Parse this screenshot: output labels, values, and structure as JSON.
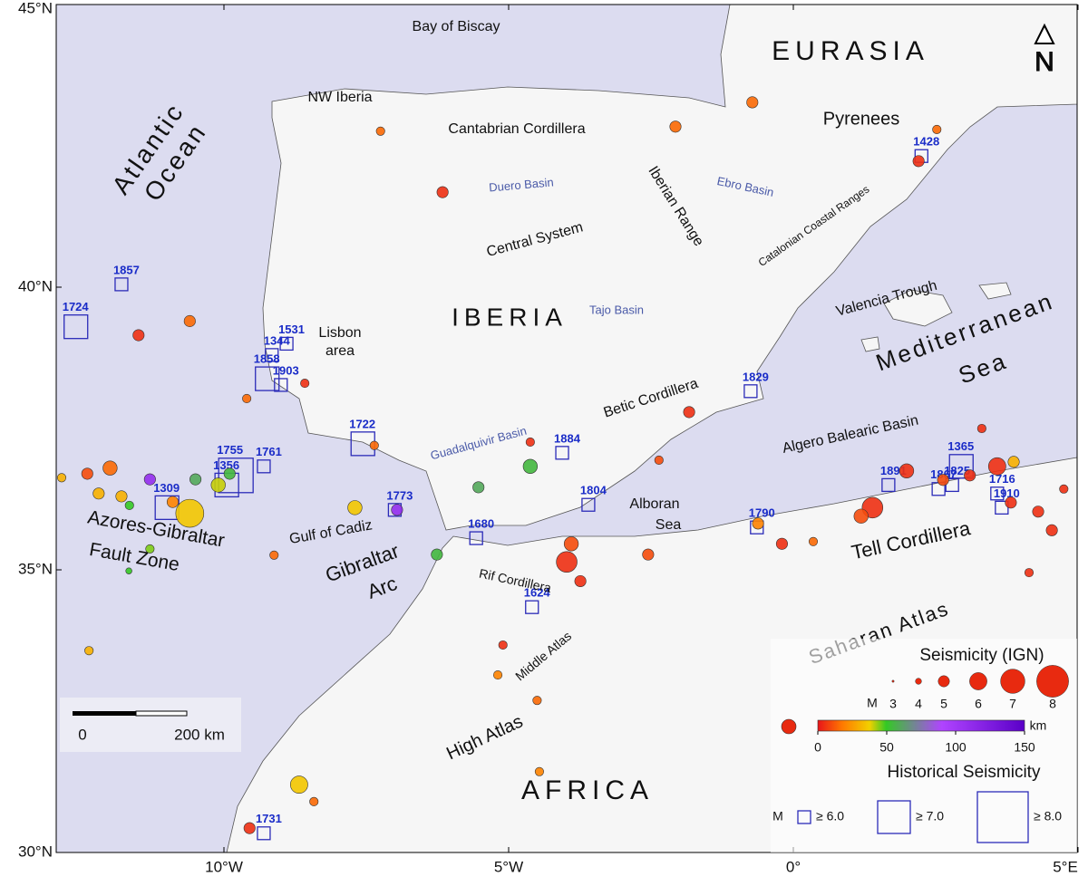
{
  "map": {
    "lat_ticks": [
      {
        "value": 45,
        "label": "45°N"
      },
      {
        "value": 40,
        "label": "40°N"
      },
      {
        "value": 35,
        "label": "35°N"
      },
      {
        "value": 30,
        "label": "30°N"
      }
    ],
    "lon_ticks": [
      {
        "value": -10,
        "label": "10°W"
      },
      {
        "value": -5,
        "label": "5°W"
      },
      {
        "value": 0,
        "label": "0°"
      },
      {
        "value": 5,
        "label": "5°E"
      }
    ],
    "labels": [
      "Bay of Biscay",
      "EURASIA",
      "NW Iberia",
      "Cantabrian Cordillera",
      "Pyrenees",
      "Duero Basin",
      "Ebro Basin",
      "Iberian Range",
      "Catalonian Coastal Ranges",
      "Central System",
      "Atlantic",
      "Ocean",
      "Lisbon",
      "area",
      "IBERIA",
      "Tajo Basin",
      "Valencia Trough",
      "Mediterranean",
      "Sea",
      "Betic Cordillera",
      "Guadalquivir Basin",
      "Algero Balearic Basin",
      "Alboran",
      "Sea",
      "Azores-Gibraltar",
      "Fault Zone",
      "Gulf of Cadiz",
      "Gibraltar",
      "Arc",
      "Rif Cordillera",
      "Tell Cordillera",
      "Saharan Atlas",
      "Middle Atlas",
      "High Atlas",
      "AFRICA"
    ],
    "north": "N",
    "scale_bar": {
      "start": "0",
      "end": "200 km"
    },
    "seismicity": {
      "title": "Seismicity (IGN)",
      "magnitude_label": "M",
      "magnitudes": [
        3,
        4,
        5,
        6,
        7,
        8
      ],
      "depth_ticks": [
        0,
        50,
        100,
        150
      ],
      "depth_unit": "km",
      "events": [
        {
          "lon": -12.4,
          "lat": 36.7,
          "mag": 5,
          "depth": 10
        },
        {
          "lon": -12.0,
          "lat": 36.8,
          "mag": 5.5,
          "depth": 15
        },
        {
          "lon": -11.8,
          "lat": 36.3,
          "mag": 5,
          "depth": 30
        },
        {
          "lon": -11.3,
          "lat": 36.6,
          "mag": 5,
          "depth": 110
        },
        {
          "lon": -10.9,
          "lat": 36.2,
          "mag": 5,
          "depth": 20
        },
        {
          "lon": -10.6,
          "lat": 36.0,
          "mag": 7.5,
          "depth": 35
        },
        {
          "lon": -10.5,
          "lat": 36.6,
          "mag": 5,
          "depth": 60
        },
        {
          "lon": -10.1,
          "lat": 36.5,
          "mag": 5.5,
          "depth": 40
        },
        {
          "lon": -9.9,
          "lat": 36.7,
          "mag": 5,
          "depth": 55
        },
        {
          "lon": -7.7,
          "lat": 36.1,
          "mag": 5.5,
          "depth": 35
        },
        {
          "lon": -6.96,
          "lat": 36.06,
          "mag": 5,
          "depth": 110
        },
        {
          "lon": -10.6,
          "lat": 39.4,
          "mag": 5,
          "depth": 15
        },
        {
          "lon": -11.5,
          "lat": 39.15,
          "mag": 5,
          "depth": 5
        },
        {
          "lon": -9.6,
          "lat": 38.03,
          "mag": 4.5,
          "depth": 15
        },
        {
          "lon": -8.58,
          "lat": 38.3,
          "mag": 4.5,
          "depth": 5
        },
        {
          "lon": -7.36,
          "lat": 37.2,
          "mag": 4.5,
          "depth": 15
        },
        {
          "lon": -4.62,
          "lat": 37.26,
          "mag": 4.5,
          "depth": 5
        },
        {
          "lon": -4.62,
          "lat": 36.83,
          "mag": 5.5,
          "depth": 55
        },
        {
          "lon": -5.53,
          "lat": 36.46,
          "mag": 5,
          "depth": 60
        },
        {
          "lon": -6.26,
          "lat": 35.27,
          "mag": 5,
          "depth": 55
        },
        {
          "lon": -3.9,
          "lat": 35.46,
          "mag": 5.5,
          "depth": 10
        },
        {
          "lon": -3.98,
          "lat": 35.14,
          "mag": 6.5,
          "depth": 5
        },
        {
          "lon": -3.74,
          "lat": 34.8,
          "mag": 5,
          "depth": 5
        },
        {
          "lon": -2.55,
          "lat": 35.27,
          "mag": 5,
          "depth": 10
        },
        {
          "lon": -1.83,
          "lat": 37.79,
          "mag": 5,
          "depth": 5
        },
        {
          "lon": -2.36,
          "lat": 36.94,
          "mag": 4.5,
          "depth": 10
        },
        {
          "lon": -5.1,
          "lat": 33.67,
          "mag": 4.5,
          "depth": 5
        },
        {
          "lon": -5.19,
          "lat": 33.14,
          "mag": 4.5,
          "depth": 20
        },
        {
          "lon": -4.5,
          "lat": 32.69,
          "mag": 4.5,
          "depth": 15
        },
        {
          "lon": -4.46,
          "lat": 31.43,
          "mag": 4.5,
          "depth": 20
        },
        {
          "lon": -8.68,
          "lat": 31.2,
          "mag": 6,
          "depth": 35
        },
        {
          "lon": -8.42,
          "lat": 30.9,
          "mag": 4.5,
          "depth": 15
        },
        {
          "lon": -9.55,
          "lat": 30.43,
          "mag": 5,
          "depth": 5
        },
        {
          "lon": 3.31,
          "lat": 37.5,
          "mag": 4.5,
          "depth": 5
        },
        {
          "lon": 1.39,
          "lat": 36.1,
          "mag": 6.5,
          "depth": 5
        },
        {
          "lon": 1.19,
          "lat": 35.95,
          "mag": 5.5,
          "depth": 10
        },
        {
          "lon": 1.99,
          "lat": 36.75,
          "mag": 5.5,
          "depth": 5
        },
        {
          "lon": 3.58,
          "lat": 36.83,
          "mag": 6,
          "depth": 5
        },
        {
          "lon": 3.87,
          "lat": 36.91,
          "mag": 5,
          "depth": 30
        },
        {
          "lon": 3.1,
          "lat": 36.67,
          "mag": 5,
          "depth": 5
        },
        {
          "lon": 2.63,
          "lat": 36.59,
          "mag": 5,
          "depth": 10
        },
        {
          "lon": 4.3,
          "lat": 36.03,
          "mag": 5,
          "depth": 5
        },
        {
          "lon": 4.54,
          "lat": 35.7,
          "mag": 5,
          "depth": 5
        },
        {
          "lon": 4.14,
          "lat": 34.95,
          "mag": 4.5,
          "depth": 5
        },
        {
          "lon": 3.82,
          "lat": 36.19,
          "mag": 5,
          "depth": 5
        },
        {
          "lon": 4.75,
          "lat": 36.43,
          "mag": 4.5,
          "depth": 5
        },
        {
          "lon": -0.2,
          "lat": 35.46,
          "mag": 5,
          "depth": 5
        },
        {
          "lon": -0.62,
          "lat": 35.82,
          "mag": 5,
          "depth": 20
        },
        {
          "lon": 0.35,
          "lat": 35.5,
          "mag": 4.5,
          "depth": 15
        },
        {
          "lon": -0.72,
          "lat": 43.27,
          "mag": 5,
          "depth": 15
        },
        {
          "lon": -2.07,
          "lat": 42.84,
          "mag": 5,
          "depth": 15
        },
        {
          "lon": 2.52,
          "lat": 42.79,
          "mag": 4.5,
          "depth": 15
        },
        {
          "lon": 2.2,
          "lat": 42.23,
          "mag": 5,
          "depth": 5
        },
        {
          "lon": -7.25,
          "lat": 42.76,
          "mag": 4.5,
          "depth": 15
        },
        {
          "lon": -6.16,
          "lat": 41.68,
          "mag": 5,
          "depth": 5
        },
        {
          "lon": -12.85,
          "lat": 36.63,
          "mag": 4.5,
          "depth": 30
        },
        {
          "lon": -12.2,
          "lat": 36.35,
          "mag": 5,
          "depth": 30
        },
        {
          "lon": -11.66,
          "lat": 36.14,
          "mag": 4.5,
          "depth": 50
        },
        {
          "lon": -11.3,
          "lat": 35.37,
          "mag": 4.5,
          "depth": 45
        },
        {
          "lon": -11.67,
          "lat": 34.98,
          "mag": 4,
          "depth": 50
        },
        {
          "lon": -12.37,
          "lat": 33.57,
          "mag": 4.5,
          "depth": 30
        },
        {
          "lon": -9.12,
          "lat": 35.26,
          "mag": 4.5,
          "depth": 15
        }
      ]
    },
    "historical": {
      "title": "Historical Seismicity",
      "magnitude_label": "M",
      "classes": [
        {
          "value": 6,
          "label": "≥ 6.0"
        },
        {
          "value": 7,
          "label": "≥ 7.0"
        },
        {
          "value": 8,
          "label": "≥ 8.0"
        }
      ],
      "events": [
        {
          "year": 1857,
          "lon": -11.8,
          "lat": 40.05,
          "m": 6
        },
        {
          "year": 1724,
          "lon": -12.6,
          "lat": 39.3,
          "m": 7
        },
        {
          "year": 1531,
          "lon": -8.9,
          "lat": 39.0,
          "m": 6
        },
        {
          "year": 1344,
          "lon": -9.16,
          "lat": 38.8,
          "m": 6
        },
        {
          "year": 1903,
          "lon": -9.0,
          "lat": 38.27,
          "m": 6
        },
        {
          "year": 1858,
          "lon": -9.24,
          "lat": 38.38,
          "m": 7
        },
        {
          "year": 1722,
          "lon": -7.56,
          "lat": 37.23,
          "m": 7
        },
        {
          "year": 1755,
          "lon": -9.79,
          "lat": 36.67,
          "m": 8
        },
        {
          "year": 1761,
          "lon": -9.3,
          "lat": 36.83,
          "m": 6
        },
        {
          "year": 1309,
          "lon": -11.0,
          "lat": 36.1,
          "m": 7
        },
        {
          "year": 1356,
          "lon": -9.95,
          "lat": 36.5,
          "m": 7
        },
        {
          "year": 1773,
          "lon": -7.0,
          "lat": 36.06,
          "m": 6
        },
        {
          "year": 1680,
          "lon": -5.57,
          "lat": 35.56,
          "m": 6
        },
        {
          "year": 1884,
          "lon": -4.06,
          "lat": 37.07,
          "m": 6
        },
        {
          "year": 1804,
          "lon": -3.6,
          "lat": 36.15,
          "m": 6
        },
        {
          "year": 1624,
          "lon": -4.59,
          "lat": 34.34,
          "m": 6
        },
        {
          "year": 1731,
          "lon": -9.3,
          "lat": 30.34,
          "m": 6
        },
        {
          "year": 1790,
          "lon": -0.64,
          "lat": 35.75,
          "m": 6
        },
        {
          "year": 1829,
          "lon": -0.75,
          "lat": 38.16,
          "m": 6
        },
        {
          "year": 1428,
          "lon": 2.25,
          "lat": 42.32,
          "m": 6
        },
        {
          "year": 1891,
          "lon": 1.67,
          "lat": 36.5,
          "m": 6
        },
        {
          "year": 1365,
          "lon": 2.95,
          "lat": 36.83,
          "m": 7
        },
        {
          "year": 1867,
          "lon": 2.55,
          "lat": 36.43,
          "m": 6
        },
        {
          "year": 1825,
          "lon": 2.79,
          "lat": 36.5,
          "m": 6
        },
        {
          "year": 1716,
          "lon": 3.58,
          "lat": 36.35,
          "m": 6
        },
        {
          "year": 1910,
          "lon": 3.66,
          "lat": 36.1,
          "m": 6
        }
      ]
    }
  }
}
